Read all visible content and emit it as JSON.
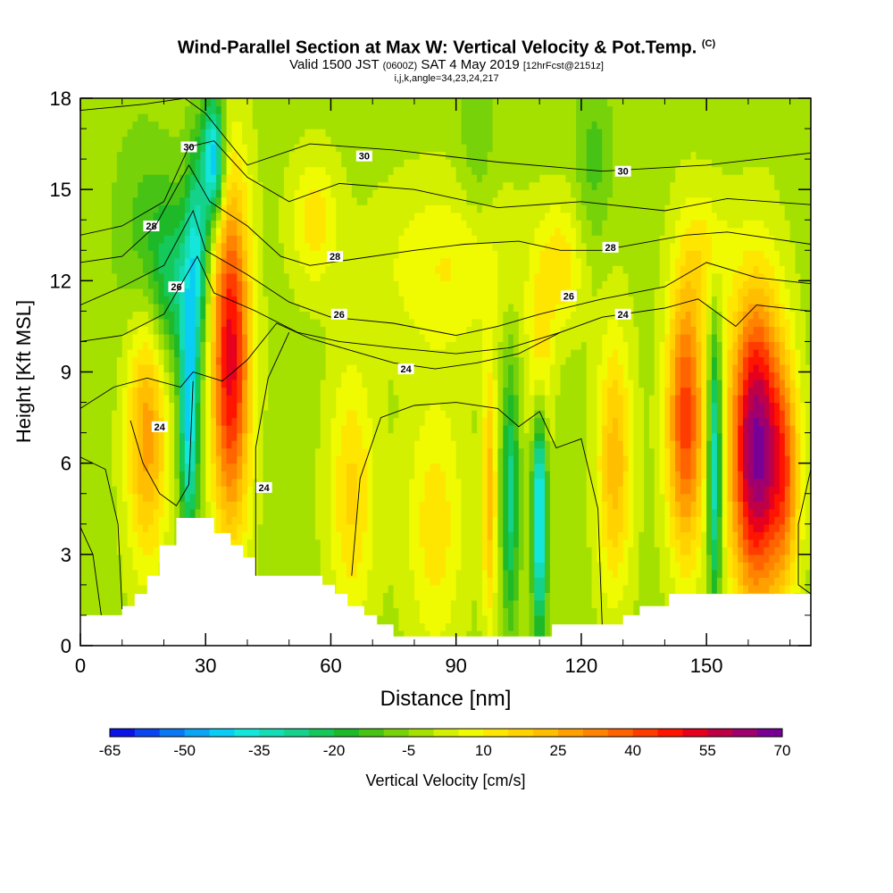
{
  "header": {
    "title": "Wind-Parallel Section at Max W: Vertical Velocity & Pot.Temp.",
    "copyright": "(C)",
    "valid_main": "Valid 1500 JST",
    "valid_utc": "(0600Z)",
    "valid_date": "SAT 4 May 2019",
    "forecast": "[12hrFcst@2151z]",
    "indices": "i,j,k,angle=34,23,24,217"
  },
  "chart_data": {
    "type": "heatmap",
    "xlabel": "Distance [nm]",
    "ylabel": "Height [Kft MSL]",
    "xlim": [
      0,
      175
    ],
    "ylim": [
      0,
      18
    ],
    "x_ticks": [
      "0",
      "30",
      "60",
      "90",
      "120",
      "150"
    ],
    "x_tick_values": [
      0,
      30,
      60,
      90,
      120,
      150
    ],
    "y_ticks": [
      "0",
      "3",
      "6",
      "9",
      "12",
      "15",
      "18"
    ],
    "y_tick_values": [
      0,
      3,
      6,
      9,
      12,
      15,
      18
    ],
    "background_value": -2,
    "updraft_cores": [
      {
        "x": 16,
        "y": 7,
        "amp": 30,
        "sx": 3.5,
        "sy": 3
      },
      {
        "x": 36,
        "y": 9.5,
        "amp": 55,
        "sx": 3.3,
        "sy": 4
      },
      {
        "x": 145,
        "y": 7.5,
        "amp": 45,
        "sx": 3.2,
        "sy": 3.2
      },
      {
        "x": 162,
        "y": 6.5,
        "amp": 70,
        "sx": 4.5,
        "sy": 3.5
      },
      {
        "x": 169,
        "y": 5.5,
        "amp": 25,
        "sx": 2.5,
        "sy": 2.5
      },
      {
        "x": 98,
        "y": 5,
        "amp": 25,
        "sx": 1.2,
        "sy": 3
      },
      {
        "x": 110,
        "y": 9,
        "amp": 20,
        "sx": 2,
        "sy": 2
      },
      {
        "x": 128,
        "y": 6,
        "amp": 25,
        "sx": 3,
        "sy": 3
      },
      {
        "x": 65,
        "y": 5,
        "amp": 18,
        "sx": 4,
        "sy": 3
      },
      {
        "x": 85,
        "y": 4,
        "amp": 15,
        "sx": 5,
        "sy": 3
      },
      {
        "x": 88,
        "y": 12.5,
        "amp": 12,
        "sx": 12,
        "sy": 2
      },
      {
        "x": 115,
        "y": 12.5,
        "amp": 15,
        "sx": 4,
        "sy": 1.5
      },
      {
        "x": 56,
        "y": 14,
        "amp": 15,
        "sx": 4,
        "sy": 1.5
      },
      {
        "x": 150,
        "y": 13,
        "amp": 12,
        "sx": 4,
        "sy": 1.5
      }
    ],
    "downdraft_cores": [
      {
        "x": 26,
        "y": 7.5,
        "amp": -40,
        "sx": 1.6,
        "sy": 2.8
      },
      {
        "x": 32,
        "y": 16,
        "amp": -45,
        "sx": 1.8,
        "sy": 1.5
      },
      {
        "x": 28,
        "y": 13,
        "amp": -28,
        "sx": 2,
        "sy": 2.5
      },
      {
        "x": 22,
        "y": 12,
        "amp": -20,
        "sx": 4,
        "sy": 2
      },
      {
        "x": 15,
        "y": 13.5,
        "amp": -10,
        "sx": 5,
        "sy": 2.5
      },
      {
        "x": 110,
        "y": 4.5,
        "amp": -45,
        "sx": 1.2,
        "sy": 2.8
      },
      {
        "x": 103,
        "y": 5,
        "amp": -25,
        "sx": 1.4,
        "sy": 3
      },
      {
        "x": 152,
        "y": 6,
        "amp": -40,
        "sx": 1.2,
        "sy": 3.2
      },
      {
        "x": 123,
        "y": 16,
        "amp": -10,
        "sx": 3,
        "sy": 2
      },
      {
        "x": 95,
        "y": 16.5,
        "amp": -8,
        "sx": 3,
        "sy": 2
      }
    ],
    "terrain": [
      [
        0,
        1.0
      ],
      [
        10,
        1.0
      ],
      [
        10,
        1.3
      ],
      [
        13,
        1.3
      ],
      [
        13,
        1.7
      ],
      [
        16,
        1.7
      ],
      [
        16,
        2.3
      ],
      [
        19,
        2.3
      ],
      [
        19,
        3.3
      ],
      [
        23,
        3.3
      ],
      [
        23,
        4.2
      ],
      [
        32,
        4.2
      ],
      [
        32,
        3.7
      ],
      [
        36,
        3.7
      ],
      [
        36,
        3.3
      ],
      [
        39,
        3.3
      ],
      [
        39,
        2.9
      ],
      [
        42,
        2.9
      ],
      [
        42,
        2.3
      ],
      [
        58,
        2.3
      ],
      [
        58,
        2.0
      ],
      [
        61,
        2.0
      ],
      [
        61,
        1.7
      ],
      [
        64,
        1.7
      ],
      [
        64,
        1.3
      ],
      [
        68,
        1.3
      ],
      [
        68,
        1.0
      ],
      [
        71,
        1.0
      ],
      [
        71,
        0.7
      ],
      [
        75,
        0.7
      ],
      [
        75,
        0.3
      ],
      [
        99,
        0.3
      ],
      [
        99,
        0.3
      ],
      [
        108,
        0.3
      ],
      [
        108,
        0.3
      ],
      [
        113,
        0.3
      ],
      [
        113,
        0.7
      ],
      [
        130,
        0.7
      ],
      [
        130,
        1.0
      ],
      [
        134,
        1.0
      ],
      [
        134,
        1.3
      ],
      [
        141,
        1.3
      ],
      [
        141,
        1.7
      ],
      [
        175,
        1.7
      ]
    ],
    "theta_contours": [
      {
        "label": "30",
        "points": [
          [
            0,
            17.6
          ],
          [
            15,
            17.8
          ],
          [
            25,
            18.0
          ],
          [
            30,
            17.5
          ],
          [
            40,
            15.8
          ],
          [
            55,
            16.5
          ],
          [
            75,
            16.3
          ],
          [
            100,
            15.9
          ],
          [
            125,
            15.6
          ],
          [
            150,
            15.8
          ],
          [
            175,
            16.2
          ]
        ],
        "labels": [
          {
            "text": "30",
            "x": 26,
            "y": 16.4
          },
          {
            "text": "30",
            "x": 68,
            "y": 16.1
          },
          {
            "text": "30",
            "x": 130,
            "y": 15.6
          }
        ]
      },
      {
        "label": "28",
        "points": [
          [
            0,
            13.5
          ],
          [
            10,
            13.8
          ],
          [
            20,
            14.6
          ],
          [
            26,
            16.4
          ],
          [
            32,
            16.6
          ],
          [
            40,
            15.4
          ],
          [
            50,
            14.6
          ],
          [
            62,
            15.2
          ],
          [
            80,
            15.0
          ],
          [
            100,
            14.4
          ],
          [
            120,
            14.6
          ],
          [
            140,
            14.3
          ],
          [
            155,
            14.7
          ],
          [
            175,
            14.5
          ]
        ],
        "labels": [
          {
            "text": "28",
            "x": 17,
            "y": 13.8
          }
        ]
      },
      {
        "label": "28b",
        "points": [
          [
            0,
            12.6
          ],
          [
            10,
            12.8
          ],
          [
            18,
            13.8
          ],
          [
            26,
            15.8
          ],
          [
            31,
            14.6
          ],
          [
            40,
            13.8
          ],
          [
            48,
            12.8
          ],
          [
            55,
            12.5
          ],
          [
            65,
            12.7
          ],
          [
            80,
            13.0
          ],
          [
            92,
            13.2
          ],
          [
            105,
            13.3
          ],
          [
            115,
            13.0
          ],
          [
            125,
            13.0
          ],
          [
            145,
            13.5
          ],
          [
            155,
            13.6
          ],
          [
            175,
            13.2
          ]
        ],
        "labels": [
          {
            "text": "28",
            "x": 61,
            "y": 12.8
          },
          {
            "text": "28",
            "x": 127,
            "y": 13.1
          }
        ]
      },
      {
        "label": "26",
        "points": [
          [
            0,
            11.2
          ],
          [
            10,
            11.8
          ],
          [
            20,
            12.5
          ],
          [
            27,
            14.3
          ],
          [
            30,
            13.0
          ],
          [
            40,
            12.2
          ],
          [
            50,
            11.3
          ],
          [
            60,
            10.8
          ],
          [
            75,
            10.6
          ],
          [
            90,
            10.2
          ],
          [
            100,
            10.5
          ],
          [
            110,
            10.9
          ],
          [
            125,
            11.4
          ],
          [
            140,
            11.8
          ],
          [
            150,
            12.6
          ],
          [
            162,
            12.1
          ],
          [
            175,
            11.9
          ]
        ],
        "labels": [
          {
            "text": "26",
            "x": 23,
            "y": 11.8
          },
          {
            "text": "26",
            "x": 62,
            "y": 10.9
          },
          {
            "text": "26",
            "x": 117,
            "y": 11.5
          }
        ]
      },
      {
        "label": "24",
        "points": [
          [
            0,
            10.0
          ],
          [
            10,
            10.2
          ],
          [
            20,
            10.9
          ],
          [
            28,
            12.8
          ],
          [
            32,
            11.6
          ],
          [
            42,
            11.0
          ],
          [
            52,
            10.3
          ],
          [
            62,
            10.0
          ],
          [
            75,
            9.8
          ],
          [
            90,
            9.6
          ],
          [
            103,
            9.8
          ],
          [
            115,
            10.3
          ],
          [
            125,
            10.8
          ],
          [
            140,
            11.1
          ],
          [
            148,
            11.4
          ],
          [
            157,
            10.5
          ],
          [
            162,
            11.2
          ],
          [
            175,
            11.0
          ]
        ],
        "labels": [
          {
            "text": "24",
            "x": 130,
            "y": 10.9
          }
        ]
      },
      {
        "label": "24b",
        "points": [
          [
            0,
            7.8
          ],
          [
            8,
            8.5
          ],
          [
            16,
            8.8
          ],
          [
            24,
            8.5
          ],
          [
            27,
            9.0
          ],
          [
            34,
            8.7
          ],
          [
            40,
            9.4
          ],
          [
            47,
            10.6
          ],
          [
            55,
            10.1
          ],
          [
            65,
            9.7
          ],
          [
            75,
            9.3
          ],
          [
            85,
            9.1
          ],
          [
            95,
            9.3
          ],
          [
            105,
            9.6
          ],
          [
            115,
            10.3
          ]
        ],
        "labels": [
          {
            "text": "24",
            "x": 78,
            "y": 9.1
          }
        ]
      },
      {
        "label": "24c",
        "points": [
          [
            12,
            7.4
          ],
          [
            15,
            6.0
          ],
          [
            19,
            5.0
          ],
          [
            23,
            4.6
          ],
          [
            26,
            5.3
          ],
          [
            27,
            8.7
          ]
        ],
        "labels": [
          {
            "text": "24",
            "x": 19,
            "y": 7.2
          }
        ]
      },
      {
        "label": "24d",
        "points": [
          [
            42,
            2.3
          ],
          [
            42,
            6.5
          ],
          [
            45,
            8.8
          ],
          [
            50,
            10.3
          ]
        ],
        "labels": [
          {
            "text": "24",
            "x": 44,
            "y": 5.2
          }
        ]
      },
      {
        "label": "24e",
        "points": [
          [
            65,
            2.3
          ],
          [
            67,
            5.5
          ],
          [
            72,
            7.5
          ],
          [
            80,
            7.9
          ],
          [
            90,
            8.0
          ],
          [
            100,
            7.8
          ],
          [
            105,
            7.2
          ],
          [
            110,
            7.7
          ],
          [
            114,
            6.5
          ],
          [
            120,
            6.8
          ],
          [
            124,
            4.5
          ],
          [
            125,
            0.7
          ]
        ],
        "labels": []
      },
      {
        "label": "left",
        "points": [
          [
            0,
            6.2
          ],
          [
            6,
            5.8
          ],
          [
            9,
            4.0
          ],
          [
            10,
            1.2
          ]
        ],
        "labels": []
      },
      {
        "label": "left2",
        "points": [
          [
            0,
            3.9
          ],
          [
            3,
            3.0
          ],
          [
            5,
            1.0
          ]
        ],
        "labels": []
      },
      {
        "label": "right",
        "points": [
          [
            175,
            5.8
          ],
          [
            172,
            4.0
          ],
          [
            172,
            2.0
          ],
          [
            175,
            1.7
          ]
        ],
        "labels": []
      }
    ],
    "colorbar": {
      "label": "Vertical Velocity [cm/s]",
      "tick_labels": [
        "-65",
        "-50",
        "-35",
        "-20",
        "-5",
        "10",
        "25",
        "40",
        "55",
        "70"
      ],
      "tick_values": [
        -65,
        -50,
        -35,
        -20,
        -5,
        10,
        25,
        40,
        55,
        70
      ],
      "bounds": [
        -65,
        -60,
        -55,
        -50,
        -45,
        -40,
        -35,
        -30,
        -25,
        -20,
        -15,
        -10,
        -5,
        0,
        5,
        10,
        15,
        20,
        25,
        30,
        35,
        40,
        45,
        50,
        55,
        60,
        65,
        70
      ],
      "colors": [
        "#0a14e6",
        "#0a46f0",
        "#0a78f5",
        "#0aa5f5",
        "#0acdf5",
        "#14e6dc",
        "#14dcb4",
        "#14d28c",
        "#14c85a",
        "#1eb928",
        "#46c314",
        "#78d20a",
        "#a5e100",
        "#d2f000",
        "#f0fa00",
        "#ffe600",
        "#ffd200",
        "#ffbe00",
        "#ffa000",
        "#ff8200",
        "#ff6400",
        "#ff3c00",
        "#ff1400",
        "#e6001e",
        "#be0046",
        "#a0006e",
        "#780096"
      ]
    }
  }
}
